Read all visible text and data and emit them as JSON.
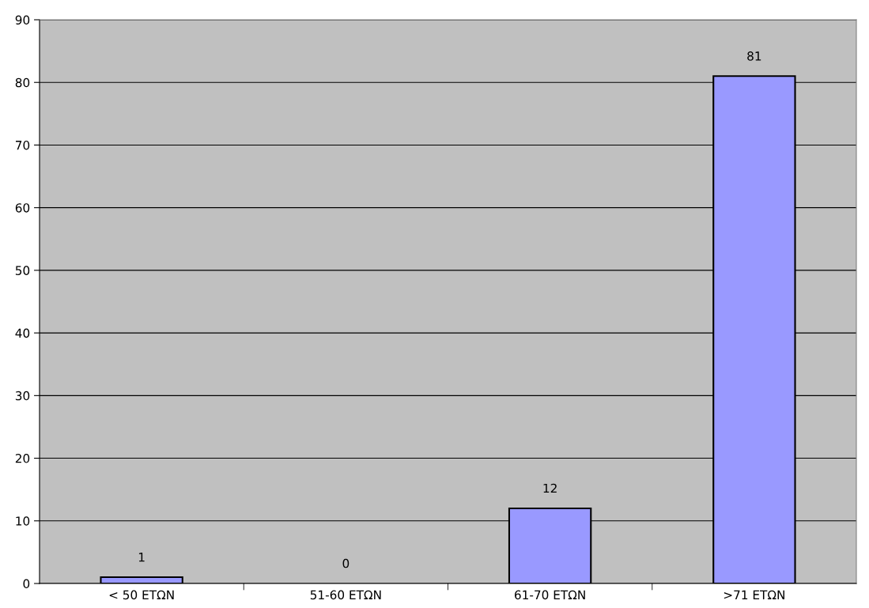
{
  "chart_data": {
    "type": "bar",
    "categories": [
      "< 50 ΕΤΩΝ",
      "51-60 ΕΤΩΝ",
      "61-70 ΕΤΩΝ",
      ">71 ΕΤΩΝ"
    ],
    "values": [
      1,
      0,
      12,
      81
    ],
    "color": "#9999ff",
    "ylim": [
      0,
      90
    ],
    "yticks": [
      0,
      10,
      20,
      30,
      40,
      50,
      60,
      70,
      80,
      90
    ],
    "grid": "y",
    "data_labels": true
  }
}
